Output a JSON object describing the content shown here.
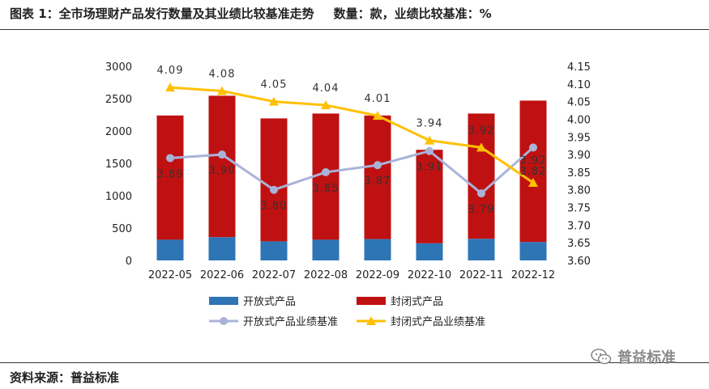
{
  "header": {
    "title": "图表 1：全市场理财产品发行数量及其业绩比较基准走势",
    "units": "数量：款，业绩比较基准：%"
  },
  "footer": {
    "source": "资料来源：普益标准",
    "watermark": "普益标准",
    "watermark_icon": "wechat-icon"
  },
  "colors": {
    "open_bar": "#2E75B6",
    "closed_bar": "#BF1111",
    "open_line": "#A9B3D8",
    "closed_line": "#FFC000"
  },
  "chart_data": {
    "type": "bar",
    "title": "",
    "categories": [
      "2022-05",
      "2022-06",
      "2022-07",
      "2022-08",
      "2022-09",
      "2022-10",
      "2022-11",
      "2022-12"
    ],
    "y_left": {
      "min": 0,
      "max": 3000,
      "step": 500,
      "ticks": [
        "0",
        "500",
        "1000",
        "1500",
        "2000",
        "2500",
        "3000"
      ]
    },
    "y_right": {
      "min": 3.6,
      "max": 4.15,
      "step": 0.05,
      "ticks": [
        "3.60",
        "3.65",
        "3.70",
        "3.75",
        "3.80",
        "3.85",
        "3.90",
        "3.95",
        "4.00",
        "4.05",
        "4.10",
        "4.15"
      ]
    },
    "series": [
      {
        "name": "开放式产品",
        "type": "bar",
        "stack": true,
        "axis": "left",
        "values": [
          320,
          360,
          295,
          320,
          330,
          265,
          335,
          285
        ]
      },
      {
        "name": "封闭式产品",
        "type": "bar",
        "stack": true,
        "axis": "left",
        "values": [
          1920,
          2185,
          1900,
          1950,
          1910,
          1445,
          1935,
          2185
        ]
      },
      {
        "name": "开放式产品业绩基准",
        "type": "line",
        "axis": "right",
        "marker": "circle",
        "values": [
          3.89,
          3.9,
          3.8,
          3.85,
          3.87,
          3.91,
          3.79,
          3.92
        ],
        "labels": [
          "3.89",
          "3.90",
          "3.80",
          "3.85",
          "3.87",
          "3.91",
          "3.79",
          "3.92"
        ]
      },
      {
        "name": "封闭式产品业绩基准",
        "type": "line",
        "axis": "right",
        "marker": "triangle",
        "values": [
          4.09,
          4.08,
          4.05,
          4.04,
          4.01,
          3.94,
          3.92,
          3.82
        ],
        "labels": [
          "4.09",
          "4.08",
          "4.05",
          "4.04",
          "4.01",
          "3.94",
          "3.92",
          "3.82"
        ]
      }
    ],
    "legend": [
      "开放式产品",
      "封闭式产品",
      "开放式产品业绩基准",
      "封闭式产品业绩基准"
    ],
    "legend_position": "bottom"
  }
}
